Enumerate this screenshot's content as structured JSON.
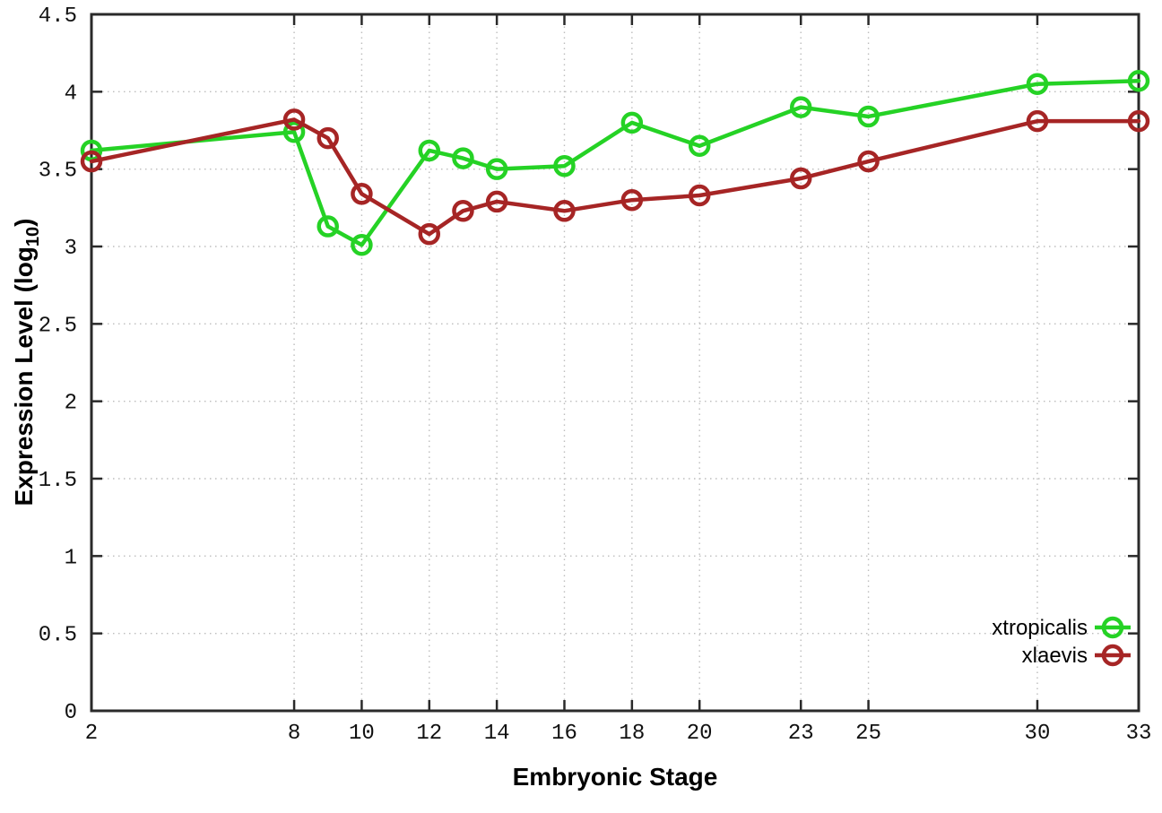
{
  "chart_data": {
    "type": "line",
    "title": "",
    "xlabel": "Embryonic Stage",
    "ylabel_prefix": "Expression Level (log",
    "ylabel_sub": "10",
    "ylabel_suffix": ")",
    "x": [
      2,
      8,
      9,
      10,
      12,
      13,
      14,
      16,
      18,
      20,
      23,
      25,
      30,
      33
    ],
    "series": [
      {
        "name": "xtropicalis",
        "color": "#25d225",
        "values": [
          3.62,
          3.74,
          3.13,
          3.01,
          3.62,
          3.57,
          3.5,
          3.52,
          3.8,
          3.65,
          3.9,
          3.84,
          4.05,
          4.07
        ]
      },
      {
        "name": "xlaevis",
        "color": "#a62525",
        "values": [
          3.55,
          3.82,
          3.7,
          3.34,
          3.08,
          3.23,
          3.29,
          3.23,
          3.3,
          3.33,
          3.44,
          3.55,
          3.81,
          3.81
        ]
      }
    ],
    "xlim": [
      2,
      33
    ],
    "ylim": [
      0,
      4.5
    ],
    "x_ticks": [
      {
        "v": 2,
        "label": "2"
      },
      {
        "v": 8,
        "label": "8"
      },
      {
        "v": 10,
        "label": "10"
      },
      {
        "v": 12,
        "label": "12"
      },
      {
        "v": 14,
        "label": "14"
      },
      {
        "v": 16,
        "label": "16"
      },
      {
        "v": 18,
        "label": "18"
      },
      {
        "v": 20,
        "label": "20"
      },
      {
        "v": 23,
        "label": "23"
      },
      {
        "v": 25,
        "label": "25"
      },
      {
        "v": 30,
        "label": "30"
      },
      {
        "v": 33,
        "label": "33"
      }
    ],
    "y_ticks": [
      {
        "v": 0,
        "label": "0"
      },
      {
        "v": 0.5,
        "label": "0.5"
      },
      {
        "v": 1,
        "label": "1"
      },
      {
        "v": 1.5,
        "label": "1.5"
      },
      {
        "v": 2,
        "label": "2"
      },
      {
        "v": 2.5,
        "label": "2.5"
      },
      {
        "v": 3,
        "label": "3"
      },
      {
        "v": 3.5,
        "label": "3.5"
      },
      {
        "v": 4,
        "label": "4"
      },
      {
        "v": 4.5,
        "label": "4.5"
      }
    ],
    "grid": true,
    "legend_position": "inside-bottom-right"
  },
  "colors": {
    "background": "#ffffff",
    "grid": "#bdbdbd",
    "axis": "#2a2a2a",
    "text": "#111111"
  }
}
